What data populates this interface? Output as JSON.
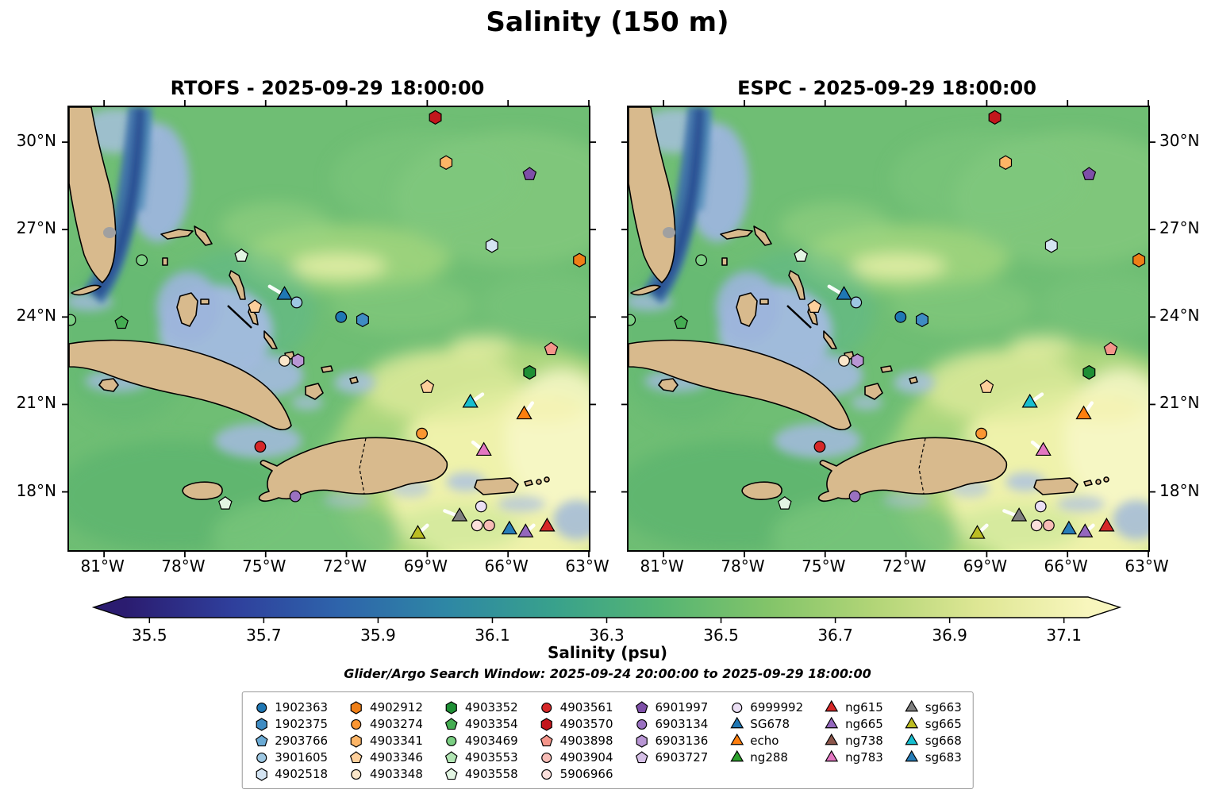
{
  "title": "Salinity (150 m)",
  "panels": [
    {
      "model": "RTOFS",
      "title": "RTOFS - 2025-09-29 18:00:00"
    },
    {
      "model": "ESPC",
      "title": "ESPC - 2025-09-29 18:00:00"
    }
  ],
  "axes": {
    "lat_labels": [
      "30°N",
      "27°N",
      "24°N",
      "21°N",
      "18°N"
    ],
    "lat_values": [
      30,
      27,
      24,
      21,
      18
    ],
    "lon_labels": [
      "81°W",
      "78°W",
      "75°W",
      "72°W",
      "69°W",
      "66°W",
      "63°W"
    ],
    "lon_values": [
      -81,
      -78,
      -75,
      -72,
      -69,
      -66,
      -63
    ]
  },
  "colorbar": {
    "label": "Salinity (psu)",
    "tick_labels": [
      "35.5",
      "35.7",
      "35.9",
      "36.1",
      "36.3",
      "36.5",
      "36.7",
      "36.9",
      "37.1"
    ],
    "gradient": [
      "#2b1c70",
      "#2f3f9c",
      "#2e64ab",
      "#2e87a5",
      "#38a18c",
      "#55b573",
      "#82c469",
      "#b2d577",
      "#dfe795",
      "#f8f6bd"
    ]
  },
  "search_window": "Glider/Argo Search Window: 2025-09-24 20:00:00 to 2025-09-29 18:00:00",
  "legend": {
    "columns": [
      [
        {
          "label": "1902363",
          "shape": "circle",
          "color": "#1f77b4"
        },
        {
          "label": "1902375",
          "shape": "hexagon",
          "color": "#3f8cc3"
        },
        {
          "label": "2903766",
          "shape": "pentagon",
          "color": "#6aaad4"
        },
        {
          "label": "3901605",
          "shape": "circle",
          "color": "#9dc7e2"
        },
        {
          "label": "4902518",
          "shape": "hexagon",
          "color": "#d4e4f2"
        }
      ],
      [
        {
          "label": "4902912",
          "shape": "hexagon",
          "color": "#ef7f17"
        },
        {
          "label": "4903274",
          "shape": "circle",
          "color": "#fb9632"
        },
        {
          "label": "4903341",
          "shape": "hexagon",
          "color": "#fdb566"
        },
        {
          "label": "4903346",
          "shape": "pentagon",
          "color": "#fdcf9b"
        },
        {
          "label": "4903348",
          "shape": "circle",
          "color": "#fae6ca"
        }
      ],
      [
        {
          "label": "4903352",
          "shape": "hexagon",
          "color": "#1e8f35"
        },
        {
          "label": "4903354",
          "shape": "pentagon",
          "color": "#45ad52"
        },
        {
          "label": "4903469",
          "shape": "circle",
          "color": "#7bcf83"
        },
        {
          "label": "4903553",
          "shape": "pentagon",
          "color": "#b1e5b3"
        },
        {
          "label": "4903558",
          "shape": "pentagon",
          "color": "#e3f5e3"
        }
      ],
      [
        {
          "label": "4903561",
          "shape": "circle",
          "color": "#d62728"
        },
        {
          "label": "4903570",
          "shape": "hexagon",
          "color": "#c3161c"
        },
        {
          "label": "4903898",
          "shape": "pentagon",
          "color": "#f4958a"
        },
        {
          "label": "4903904",
          "shape": "circle",
          "color": "#f7bcb6"
        },
        {
          "label": "5906966",
          "shape": "circle",
          "color": "#fbdfdc"
        }
      ],
      [
        {
          "label": "6901997",
          "shape": "pentagon",
          "color": "#7e4fa8"
        },
        {
          "label": "6903134",
          "shape": "circle",
          "color": "#9a71c1"
        },
        {
          "label": "6903136",
          "shape": "hexagon",
          "color": "#b896d4"
        },
        {
          "label": "6903727",
          "shape": "pentagon",
          "color": "#d5bfe6"
        }
      ],
      [
        {
          "label": "6999992",
          "shape": "circle",
          "color": "#ebdff4"
        },
        {
          "label": "SG678",
          "shape": "triangle",
          "color": "#1f77b4"
        },
        {
          "label": "echo",
          "shape": "triangle",
          "color": "#ff7f0e"
        },
        {
          "label": "ng288",
          "shape": "triangle",
          "color": "#2ca02c"
        }
      ],
      [
        {
          "label": "ng615",
          "shape": "triangle",
          "color": "#d62728"
        },
        {
          "label": "ng665",
          "shape": "triangle",
          "color": "#9467bd"
        },
        {
          "label": "ng738",
          "shape": "triangle",
          "color": "#8c564b"
        },
        {
          "label": "ng783",
          "shape": "triangle",
          "color": "#e377c2"
        }
      ],
      [
        {
          "label": "sg663",
          "shape": "triangle",
          "color": "#7f7f7f"
        },
        {
          "label": "sg665",
          "shape": "triangle",
          "color": "#bcbd22"
        },
        {
          "label": "sg668",
          "shape": "triangle",
          "color": "#17becf"
        },
        {
          "label": "sg683",
          "shape": "triangle",
          "color": "#277db8"
        }
      ]
    ]
  },
  "chart_data": {
    "type": "heatmap",
    "subtype": "geographic salinity field comparison, two models",
    "variable": "Salinity (psu)",
    "depth_m": 150,
    "valid_time": "2025-09-29 18:00:00",
    "models": [
      "RTOFS",
      "ESPC"
    ],
    "colorbar_ticks": [
      35.5,
      35.7,
      35.9,
      36.1,
      36.3,
      36.5,
      36.7,
      36.9,
      37.1
    ],
    "colorbar_extend": "both",
    "extent": {
      "lon": [
        -82.3,
        -63.0
      ],
      "lat": [
        16.0,
        31.2
      ]
    },
    "search_window": {
      "start": "2025-09-24 20:00:00",
      "end": "2025-09-29 18:00:00"
    },
    "platforms": [
      {
        "id": "4903570",
        "type": "argo",
        "lon": -68.7,
        "lat": 30.85
      },
      {
        "id": "4903341",
        "type": "argo",
        "lon": -68.3,
        "lat": 29.3
      },
      {
        "id": "6901997",
        "type": "argo",
        "lon": -65.2,
        "lat": 28.9
      },
      {
        "id": "4902518",
        "type": "argo",
        "lon": -66.6,
        "lat": 26.45
      },
      {
        "id": "4903558",
        "type": "argo",
        "lon": -75.9,
        "lat": 26.1
      },
      {
        "id": "4903469",
        "type": "argo",
        "lon": -79.6,
        "lat": 25.95
      },
      {
        "id": "4902912",
        "type": "argo",
        "lon": -63.35,
        "lat": 25.95
      },
      {
        "id": "SG678",
        "type": "glider",
        "lon": -74.3,
        "lat": 24.75,
        "track": [
          -0.55,
          0.3
        ]
      },
      {
        "id": "3901605",
        "type": "argo",
        "lon": -73.85,
        "lat": 24.5
      },
      {
        "id": "4903346",
        "type": "argo",
        "lon": -75.4,
        "lat": 24.35
      },
      {
        "id": "4903354",
        "type": "argo",
        "lon": -80.35,
        "lat": 23.8
      },
      {
        "id": "4903469",
        "type": "argo",
        "lon": -82.25,
        "lat": 23.9
      },
      {
        "id": "1902363",
        "type": "argo",
        "lon": -72.2,
        "lat": 24.0
      },
      {
        "id": "1902375",
        "type": "argo",
        "lon": -71.4,
        "lat": 23.9
      },
      {
        "id": "4903348",
        "type": "argo",
        "lon": -74.3,
        "lat": 22.5
      },
      {
        "id": "6903136",
        "type": "argo",
        "lon": -73.8,
        "lat": 22.5
      },
      {
        "id": "4903898",
        "type": "argo",
        "lon": -64.4,
        "lat": 22.9
      },
      {
        "id": "4903352",
        "type": "argo",
        "lon": -65.2,
        "lat": 22.1
      },
      {
        "id": "4903346",
        "type": "argo",
        "lon": -69.0,
        "lat": 21.6
      },
      {
        "id": "sg668",
        "type": "glider",
        "lon": -67.4,
        "lat": 21.05,
        "track": [
          0.45,
          0.3
        ]
      },
      {
        "id": "echo",
        "type": "glider",
        "lon": -65.4,
        "lat": 20.65,
        "track": [
          0.3,
          0.4
        ]
      },
      {
        "id": "4903274",
        "type": "argo",
        "lon": -69.2,
        "lat": 20.0
      },
      {
        "id": "4903561",
        "type": "argo",
        "lon": -75.2,
        "lat": 19.55
      },
      {
        "id": "ng783",
        "type": "glider",
        "lon": -66.9,
        "lat": 19.4,
        "track": [
          -0.4,
          0.3
        ]
      },
      {
        "id": "6903134",
        "type": "argo",
        "lon": -73.9,
        "lat": 17.85
      },
      {
        "id": "4903558",
        "type": "argo",
        "lon": -76.5,
        "lat": 17.6
      },
      {
        "id": "6999992",
        "type": "argo",
        "lon": -67.0,
        "lat": 17.5
      },
      {
        "id": "sg663",
        "type": "glider",
        "lon": -67.8,
        "lat": 17.15,
        "track": [
          -0.55,
          0.2
        ]
      },
      {
        "id": "sg665",
        "type": "glider",
        "lon": -69.35,
        "lat": 16.55,
        "track": [
          0.35,
          0.3
        ]
      },
      {
        "id": "5906966",
        "type": "argo",
        "lon": -67.15,
        "lat": 16.85
      },
      {
        "id": "4903904",
        "type": "argo",
        "lon": -66.7,
        "lat": 16.85
      },
      {
        "id": "sg683",
        "type": "glider",
        "lon": -65.95,
        "lat": 16.7
      },
      {
        "id": "ng665",
        "type": "glider",
        "lon": -65.35,
        "lat": 16.6,
        "track": [
          0.3,
          0.25
        ]
      },
      {
        "id": "ng615",
        "type": "glider",
        "lon": -64.55,
        "lat": 16.8
      }
    ]
  }
}
